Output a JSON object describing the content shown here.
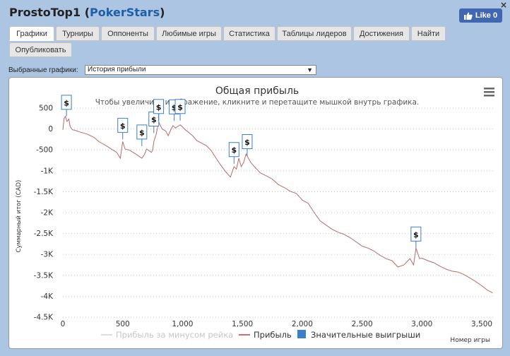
{
  "header": {
    "player_name": "ProstoTop1",
    "room_name": "PokerStars",
    "like_label": "Like 0",
    "close_label": "×"
  },
  "tabs": [
    {
      "label": "Графики"
    },
    {
      "label": "Турниры"
    },
    {
      "label": "Оппоненты"
    },
    {
      "label": "Любимые игры"
    },
    {
      "label": "Статистика"
    },
    {
      "label": "Таблицы лидеров"
    },
    {
      "label": "Достижения"
    },
    {
      "label": "Найти"
    },
    {
      "label": "Опубликовать"
    }
  ],
  "selector": {
    "label": "Выбранные графики:",
    "value": "История прибыли"
  },
  "chart_data": {
    "type": "line",
    "title": "Общая прибыль",
    "subtitle": "Чтобы увеличить изображение, кликните и перетащите мышкой внутрь графика.",
    "xlabel": "Номер игры",
    "ylabel": "Суммарный итог (CAD)",
    "xlim": [
      0,
      3600
    ],
    "ylim": [
      -4500,
      500
    ],
    "x_ticks": [
      0,
      500,
      1000,
      1500,
      2000,
      2500,
      3000,
      3500
    ],
    "x_tick_labels": [
      "0",
      "500",
      "1,000",
      "1,500",
      "2,000",
      "2,500",
      "3,000",
      "3,500"
    ],
    "y_ticks": [
      500,
      0,
      -500,
      -1000,
      -1500,
      -2000,
      -2500,
      -3000,
      -3500,
      -4000,
      -4500
    ],
    "y_tick_labels": [
      "500",
      "0",
      "-500",
      "-1K",
      "-1.5K",
      "-2K",
      "-2.5K",
      "-3K",
      "-3.5K",
      "-4K",
      "-4.5K"
    ],
    "legend": [
      {
        "name": "Прибыль за минусом рейка",
        "color": "#dddddd",
        "type": "line"
      },
      {
        "name": "Прибыль",
        "color": "#c9706e",
        "type": "line"
      },
      {
        "name": "Значительные выигрыши",
        "color": "#3a7fc9",
        "type": "box"
      }
    ],
    "series": [
      {
        "name": "Прибыль",
        "color": "#b86a68",
        "x": [
          0,
          10,
          20,
          35,
          50,
          60,
          80,
          100,
          150,
          200,
          260,
          300,
          350,
          400,
          450,
          480,
          500,
          520,
          560,
          620,
          660,
          680,
          700,
          740,
          750,
          760,
          780,
          800,
          830,
          860,
          880,
          900,
          920,
          940,
          960,
          980,
          1000,
          1020,
          1050,
          1080,
          1120,
          1160,
          1200,
          1240,
          1280,
          1320,
          1360,
          1400,
          1430,
          1450,
          1470,
          1490,
          1510,
          1530,
          1550,
          1570,
          1600,
          1650,
          1700,
          1750,
          1800,
          1850,
          1900,
          1950,
          2000,
          2050,
          2100,
          2150,
          2200,
          2250,
          2300,
          2350,
          2400,
          2450,
          2500,
          2550,
          2600,
          2650,
          2700,
          2750,
          2800,
          2850,
          2900,
          2930,
          2950,
          2980,
          3000,
          3050,
          3100,
          3150,
          3200,
          3250,
          3300,
          3350,
          3400,
          3450,
          3500,
          3550,
          3580,
          3590
        ],
        "y": [
          -20,
          250,
          300,
          180,
          240,
          60,
          -20,
          -30,
          -80,
          -120,
          -200,
          -300,
          -380,
          -470,
          -560,
          -700,
          -300,
          -480,
          -510,
          -620,
          -700,
          -620,
          -480,
          -560,
          -500,
          -300,
          -120,
          170,
          0,
          -50,
          -160,
          -30,
          80,
          20,
          60,
          100,
          50,
          -10,
          -80,
          -150,
          -280,
          -340,
          -400,
          -520,
          -700,
          -870,
          -1020,
          -1150,
          -900,
          -960,
          -700,
          -900,
          -800,
          -600,
          -700,
          -800,
          -900,
          -1050,
          -1120,
          -1200,
          -1330,
          -1400,
          -1490,
          -1540,
          -1700,
          -1780,
          -2000,
          -2200,
          -2300,
          -2400,
          -2470,
          -2520,
          -2600,
          -2700,
          -2800,
          -2850,
          -2920,
          -3020,
          -3100,
          -3150,
          -3300,
          -3250,
          -3100,
          -3250,
          -2850,
          -3100,
          -3090,
          -3150,
          -3200,
          -3280,
          -3350,
          -3400,
          -3420,
          -3480,
          -3560,
          -3650,
          -3750,
          -3860,
          -3900,
          -3920
        ]
      }
    ],
    "big_wins": [
      {
        "x": 30,
        "y": 300
      },
      {
        "x": 500,
        "y": -250
      },
      {
        "x": 660,
        "y": -410
      },
      {
        "x": 760,
        "y": -100
      },
      {
        "x": 800,
        "y": 200
      },
      {
        "x": 930,
        "y": 190
      },
      {
        "x": 980,
        "y": 200
      },
      {
        "x": 1430,
        "y": -830
      },
      {
        "x": 1540,
        "y": -640
      },
      {
        "x": 2950,
        "y": -2850
      }
    ],
    "big_win_symbol": "$"
  }
}
